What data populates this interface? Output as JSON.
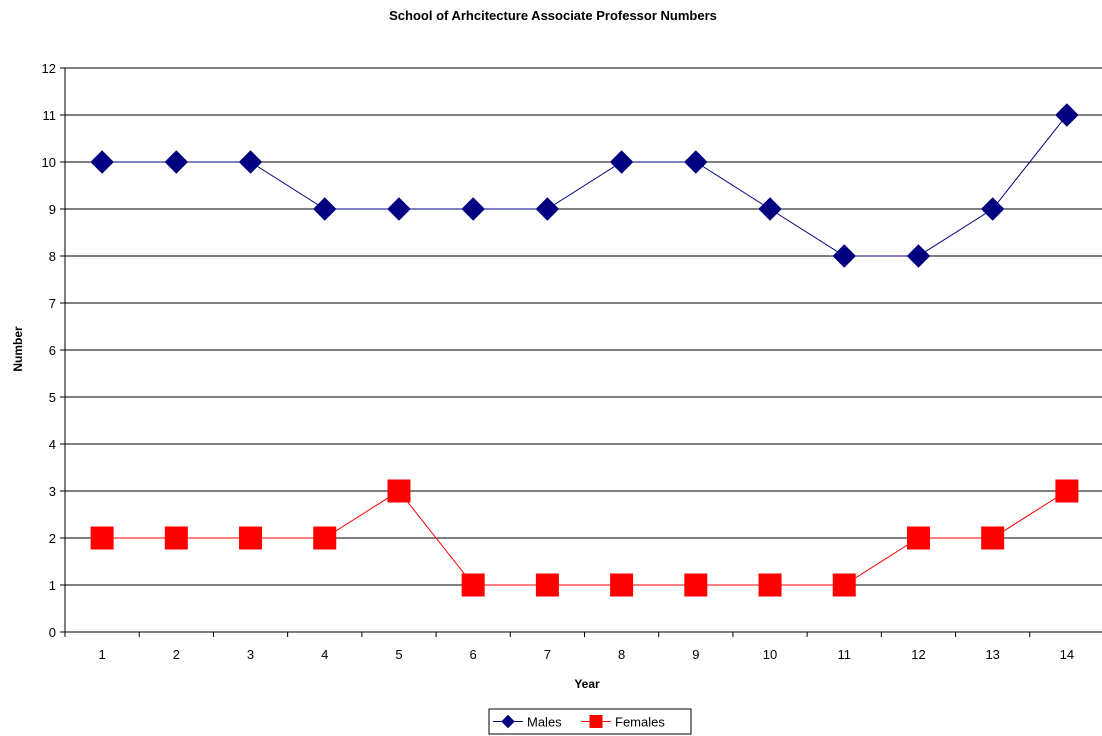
{
  "chart_data": {
    "type": "line",
    "title": "School of Arhcitecture Associate Professor Numbers",
    "xlabel": "Year",
    "ylabel": "Number",
    "x": [
      1,
      2,
      3,
      4,
      5,
      6,
      7,
      8,
      9,
      10,
      11,
      12,
      13,
      14
    ],
    "ylim": [
      0,
      12
    ],
    "yticks": [
      0,
      1,
      2,
      3,
      4,
      5,
      6,
      7,
      8,
      9,
      10,
      11,
      12
    ],
    "grid": true,
    "legend_position": "bottom",
    "series": [
      {
        "name": "Males",
        "color": "#000080",
        "marker": "diamond",
        "values": [
          10,
          10,
          10,
          9,
          9,
          9,
          9,
          10,
          10,
          9,
          8,
          8,
          9,
          11
        ]
      },
      {
        "name": "Females",
        "color": "#ff0000",
        "marker": "square",
        "values": [
          2,
          2,
          2,
          2,
          3,
          1,
          1,
          1,
          1,
          1,
          1,
          2,
          2,
          3
        ]
      }
    ]
  }
}
